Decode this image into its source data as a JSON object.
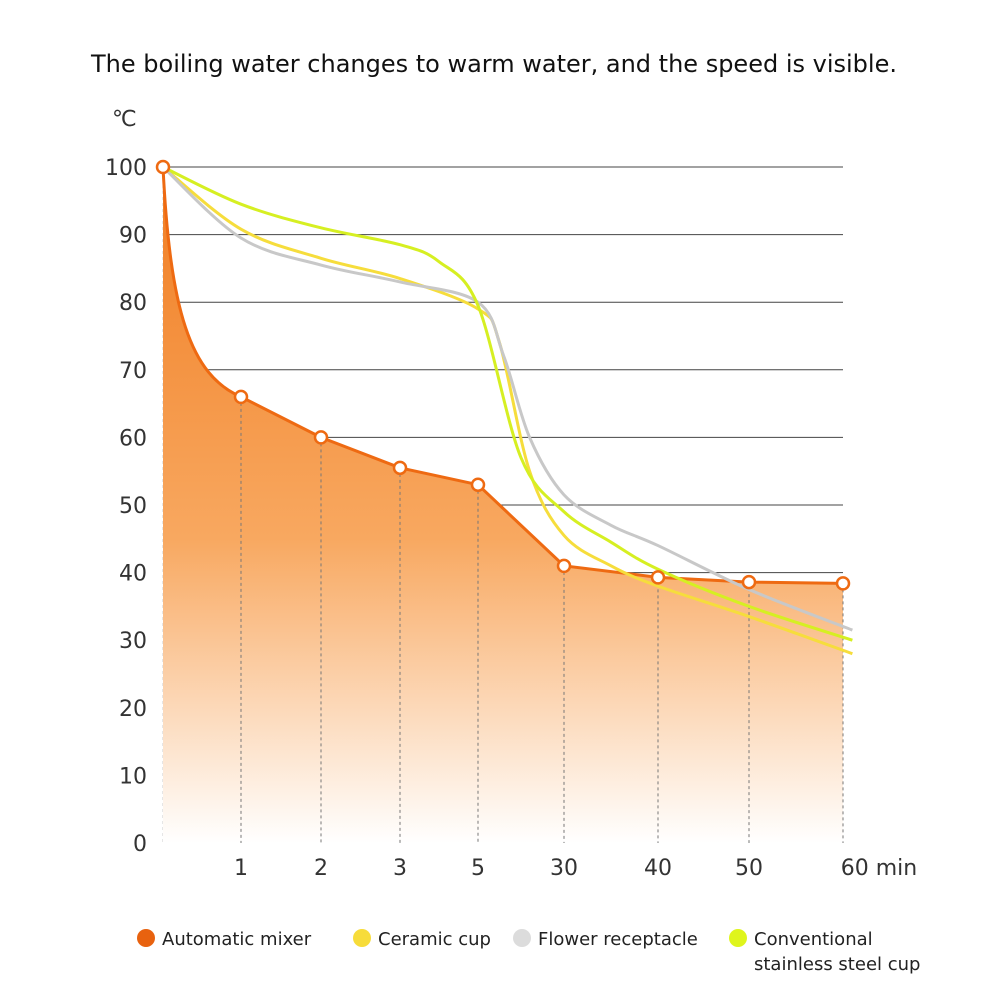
{
  "chart_data": {
    "type": "area",
    "title": "The boiling water changes to warm water, and the speed is visible.",
    "ylabel": "℃",
    "xlabel": "min",
    "ylim": [
      0,
      100
    ],
    "yticks": [
      "0",
      "10",
      "20",
      "30",
      "40",
      "50",
      "60",
      "70",
      "80",
      "90",
      "100"
    ],
    "categories": [
      "0",
      "1",
      "2",
      "3",
      "5",
      "30",
      "40",
      "50",
      "60"
    ],
    "xtick_labels": [
      "1",
      "2",
      "3",
      "5",
      "30",
      "40",
      "50",
      "60 min"
    ],
    "grid": true,
    "legend_position": "bottom",
    "series": [
      {
        "name": "Automatic mixer",
        "color": "#ee6a12",
        "kind": "area-with-markers",
        "values": [
          100,
          66,
          60,
          55.5,
          53,
          41,
          39.3,
          38.6,
          38.4
        ]
      },
      {
        "name": "Ceramic cup",
        "color": "#f6dd3c",
        "kind": "curve",
        "points": [
          [
            0,
            100
          ],
          [
            1,
            90.8
          ],
          [
            2,
            86.5
          ],
          [
            3,
            83.5
          ],
          [
            4,
            79
          ],
          [
            4.25,
            74
          ],
          [
            4.6,
            55
          ],
          [
            5,
            45.5
          ],
          [
            5.5,
            41
          ],
          [
            6,
            38
          ],
          [
            7,
            33.5
          ],
          [
            8.1,
            28
          ]
        ]
      },
      {
        "name": "Flower receptacle",
        "color": "#c8c8c8",
        "kind": "curve",
        "points": [
          [
            0,
            100
          ],
          [
            1,
            89.5
          ],
          [
            2,
            85.5
          ],
          [
            3,
            83
          ],
          [
            4,
            80
          ],
          [
            4.3,
            72
          ],
          [
            4.6,
            60
          ],
          [
            5,
            51.5
          ],
          [
            5.5,
            47
          ],
          [
            6,
            44
          ],
          [
            7,
            37.5
          ],
          [
            8.1,
            31.5
          ]
        ]
      },
      {
        "name": "Conventional stainless steel cup",
        "color": "#d6ef22",
        "kind": "curve",
        "points": [
          [
            0,
            100
          ],
          [
            1,
            94.5
          ],
          [
            2,
            91
          ],
          [
            3,
            88.5
          ],
          [
            3.5,
            86
          ],
          [
            4,
            79.5
          ],
          [
            4.5,
            57
          ],
          [
            5,
            49
          ],
          [
            5.5,
            44.5
          ],
          [
            6,
            40.5
          ],
          [
            7,
            35
          ],
          [
            8.1,
            30
          ]
        ]
      }
    ],
    "legend": [
      {
        "label": "Automatic mixer",
        "color": "#e8620f"
      },
      {
        "label": "Ceramic cup",
        "color": "#f7dc3a"
      },
      {
        "label": "Flower receptacle",
        "color": "#dcdcdc"
      },
      {
        "label_line1": "Conventional",
        "label_line2": "stainless steel cup",
        "color": "#dff51c"
      }
    ]
  }
}
